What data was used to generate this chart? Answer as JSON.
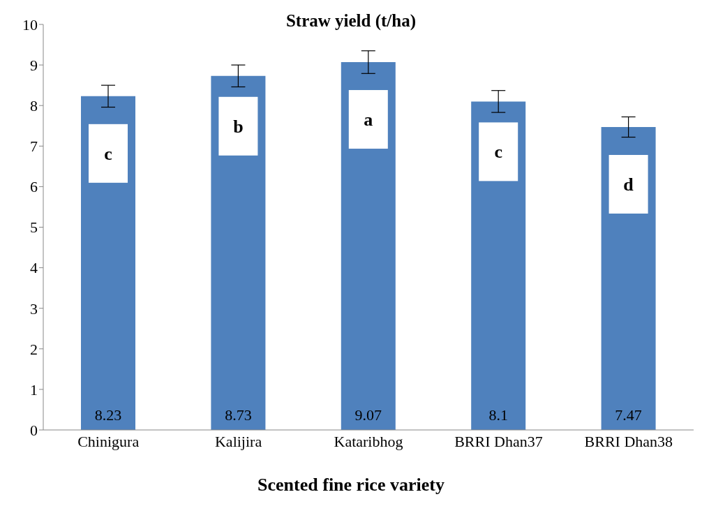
{
  "chart_data": {
    "type": "bar",
    "title": "Straw yield (t/ha)",
    "xlabel": "Scented fine rice variety",
    "categories": [
      "Chinigura",
      "Kalijira",
      "Kataribhog",
      "BRRI Dhan37",
      "BRRI Dhan38"
    ],
    "values": [
      8.23,
      8.73,
      9.07,
      8.1,
      7.47
    ],
    "errors": [
      0.27,
      0.27,
      0.28,
      0.27,
      0.25
    ],
    "color": "#4f81bd",
    "data_labels": true,
    "ylim": [
      0,
      10
    ],
    "yticks": [
      0,
      1,
      2,
      3,
      4,
      5,
      6,
      7,
      8,
      9,
      10
    ],
    "grid": false,
    "legend": false,
    "annotations": [
      "c",
      "b",
      "a",
      "c",
      "d"
    ]
  }
}
